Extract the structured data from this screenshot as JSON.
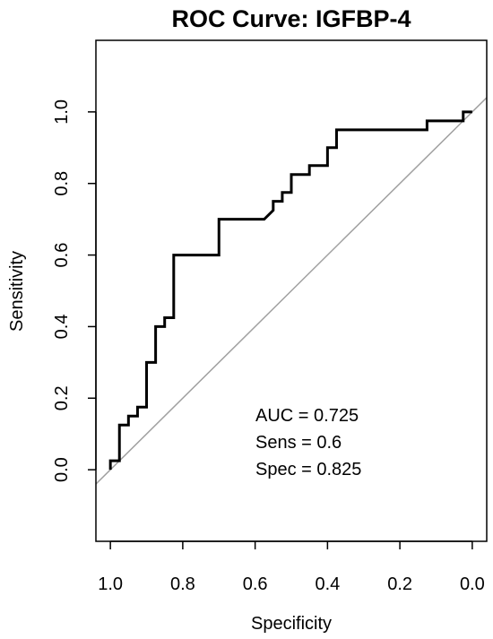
{
  "chart_data": {
    "type": "line",
    "title": "ROC Curve: IGFBP-4",
    "xlabel": "Specificity",
    "ylabel": "Sensitivity",
    "xlim": [
      1.04,
      -0.04
    ],
    "ylim": [
      -0.2,
      1.2
    ],
    "xticks": [
      1.0,
      0.8,
      0.6,
      0.4,
      0.2,
      0.0
    ],
    "xtick_labels": [
      "1.0",
      "0.8",
      "0.6",
      "0.4",
      "0.2",
      "0.0"
    ],
    "yticks": [
      0.0,
      0.2,
      0.4,
      0.6,
      0.8,
      1.0
    ],
    "ytick_labels": [
      "0.0",
      "0.2",
      "0.4",
      "0.6",
      "0.8",
      "1.0"
    ],
    "grid": false,
    "series": [
      {
        "line_color": "#000000",
        "x": [
          1.0,
          1.0,
          0.975,
          0.975,
          0.95,
          0.95,
          0.925,
          0.925,
          0.9,
          0.9,
          0.875,
          0.875,
          0.85,
          0.85,
          0.825,
          0.825,
          0.7,
          0.7,
          0.575,
          0.55,
          0.55,
          0.525,
          0.525,
          0.5,
          0.5,
          0.45,
          0.45,
          0.4,
          0.4,
          0.375,
          0.375,
          0.125,
          0.125,
          0.025,
          0.025,
          0.0
        ],
        "y": [
          0.0,
          0.025,
          0.025,
          0.125,
          0.125,
          0.15,
          0.15,
          0.175,
          0.175,
          0.3,
          0.3,
          0.4,
          0.4,
          0.425,
          0.425,
          0.6,
          0.6,
          0.7,
          0.7,
          0.725,
          0.75,
          0.75,
          0.775,
          0.775,
          0.825,
          0.825,
          0.85,
          0.85,
          0.9,
          0.9,
          0.95,
          0.95,
          0.975,
          0.975,
          1.0,
          1.0
        ]
      }
    ],
    "reference_line": {
      "from": [
        1.0,
        0.0
      ],
      "to": [
        0.0,
        1.0
      ],
      "color": "#a0a0a0"
    },
    "annotations": [
      "AUC = 0.725",
      "Sens = 0.6",
      "Spec = 0.825"
    ]
  }
}
